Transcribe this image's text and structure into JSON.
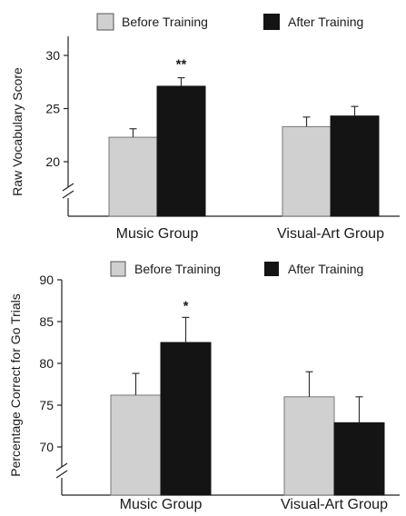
{
  "chart_data": [
    {
      "type": "bar",
      "categories": [
        "Music Group",
        "Visual-Art Group"
      ],
      "series": [
        {
          "name": "Before Training",
          "values": [
            22.3,
            23.3
          ],
          "errors": [
            0.8,
            0.9
          ]
        },
        {
          "name": "After Training",
          "values": [
            27.1,
            24.3
          ],
          "errors": [
            0.8,
            0.9
          ]
        }
      ],
      "colors": [
        "#d0d0d0",
        "#141414"
      ],
      "ylabel": "Raw Vocabulary Score",
      "ylim": [
        15,
        32
      ],
      "yticks": [
        "20",
        "25",
        "30"
      ],
      "annotations": [
        {
          "category": "Music Group",
          "text": "**"
        }
      ],
      "legend": "top",
      "grid": false,
      "axis_break": true
    },
    {
      "type": "bar",
      "categories": [
        "Music Group",
        "Visual-Art Group"
      ],
      "series": [
        {
          "name": "Before Training",
          "values": [
            76.2,
            76.0
          ],
          "errors": [
            2.6,
            3.0
          ]
        },
        {
          "name": "After Training",
          "values": [
            82.5,
            72.9
          ],
          "errors": [
            3.0,
            3.1
          ]
        }
      ],
      "colors": [
        "#d0d0d0",
        "#141414"
      ],
      "ylabel": "Percentage Correct for Go Trials",
      "ylim": [
        65,
        90
      ],
      "yticks": [
        "70",
        "75",
        "80",
        "85",
        "90"
      ],
      "annotations": [
        {
          "category": "Music Group",
          "text": "*"
        }
      ],
      "legend": "top",
      "grid": false,
      "axis_break": true
    }
  ]
}
